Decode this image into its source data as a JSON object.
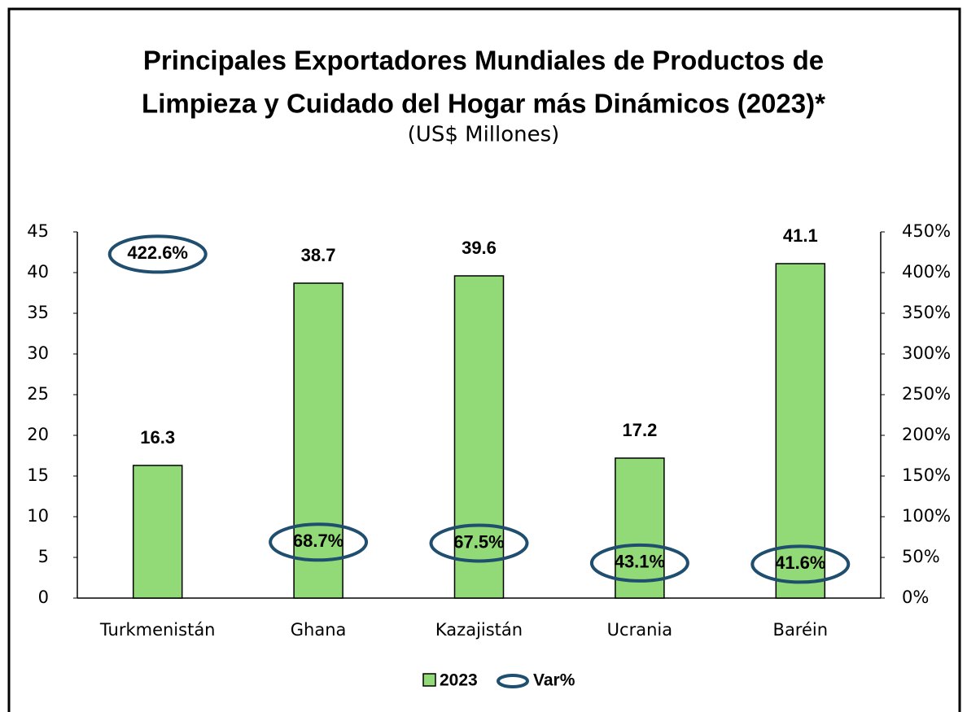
{
  "chart_data": {
    "type": "bar",
    "title": [
      "Principales Exportadores Mundiales de Productos de",
      "Limpieza y Cuidado del Hogar más Dinámicos (2023)*"
    ],
    "subtitle": "(US$ Millones)",
    "categories": [
      "Turkmenistán",
      "Ghana",
      "Kazajistán",
      "Ucrania",
      "Baréin"
    ],
    "series": [
      {
        "name": "2023",
        "type": "bar",
        "color": "#92d977",
        "values": [
          16.3,
          38.7,
          39.6,
          17.2,
          41.1
        ]
      },
      {
        "name": "Var%",
        "type": "ellipse",
        "axis": "y2",
        "color": "#1f4e6e",
        "values": [
          422.6,
          68.7,
          67.5,
          43.1,
          41.6
        ],
        "value_labels": [
          "422.6%",
          "68.7%",
          "67.5%",
          "43.1%",
          "41.6%"
        ]
      }
    ],
    "ylim": [
      0,
      45
    ],
    "yticks": [
      0,
      5,
      10,
      15,
      20,
      25,
      30,
      35,
      40,
      45
    ],
    "y2lim": [
      0,
      450
    ],
    "y2ticks": [
      {
        "value": 0,
        "label": "0%"
      },
      {
        "value": 50,
        "label": "50%"
      },
      {
        "value": 100,
        "label": "100%"
      },
      {
        "value": 150,
        "label": "150%"
      },
      {
        "value": 200,
        "label": "200%"
      },
      {
        "value": 250,
        "label": "250%"
      },
      {
        "value": 300,
        "label": "300%"
      },
      {
        "value": 350,
        "label": "350%"
      },
      {
        "value": 400,
        "label": "400%"
      },
      {
        "value": 450,
        "label": "450%"
      }
    ],
    "legend": "bottom"
  }
}
